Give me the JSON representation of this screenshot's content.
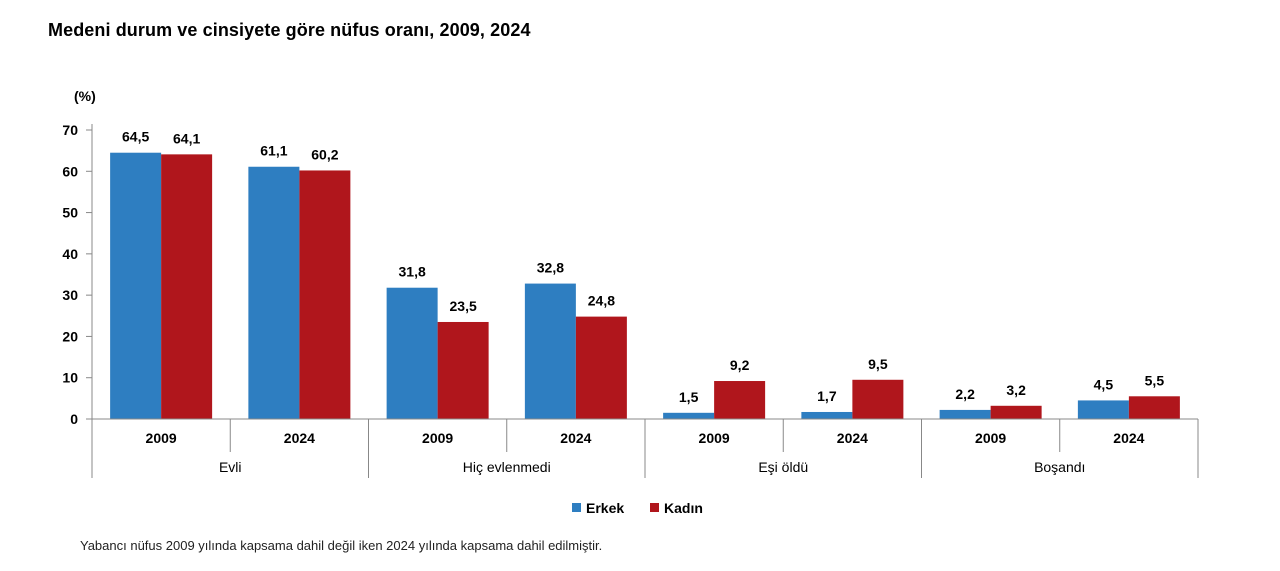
{
  "chart_data": {
    "type": "bar",
    "title": "Medeni durum ve cinsiyete göre nüfus oranı, 2009, 2024",
    "ylabel": "(%)",
    "xlabel": "",
    "ylim": [
      0,
      70
    ],
    "yticks": [
      0,
      10,
      20,
      30,
      40,
      50,
      60,
      70
    ],
    "groups": [
      "Evli",
      "Hiç evlenmedi",
      "Eşi öldü",
      "Boşandı"
    ],
    "years": [
      "2009",
      "2024"
    ],
    "categories": [
      "2009",
      "2024",
      "2009",
      "2024",
      "2009",
      "2024",
      "2009",
      "2024"
    ],
    "series": [
      {
        "name": "Erkek",
        "color": "#2E7EC1",
        "values": [
          64.5,
          61.1,
          31.8,
          32.8,
          1.5,
          1.7,
          2.2,
          4.5
        ],
        "labels": [
          "64,5",
          "61,1",
          "31,8",
          "32,8",
          "1,5",
          "1,7",
          "2,2",
          "4,5"
        ]
      },
      {
        "name": "Kadın",
        "color": "#B0161C",
        "values": [
          64.1,
          60.2,
          23.5,
          24.8,
          9.2,
          9.5,
          3.2,
          5.5
        ],
        "labels": [
          "64,1",
          "60,2",
          "23,5",
          "24,8",
          "9,2",
          "9,5",
          "3,2",
          "5,5"
        ]
      }
    ],
    "legend_position": "bottom-center",
    "grid": false
  },
  "footnote": "Yabancı nüfus 2009 yılında kapsama dahil değil iken 2024 yılında kapsama dahil edilmiştir."
}
